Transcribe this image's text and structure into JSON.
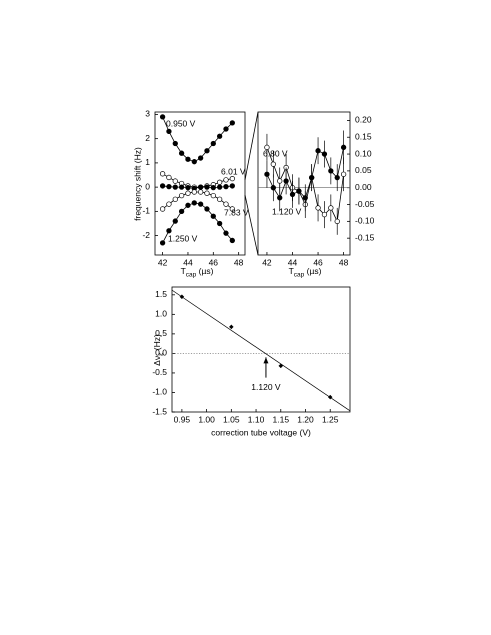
{
  "chart_data": [
    {
      "type": "line",
      "y_label": "frequency shift (Hz)",
      "x_label": {
        "main": "T",
        "sub": "cap",
        "rest": " (µs)"
      },
      "xlim": [
        41.4,
        48.5
      ],
      "xticks": [
        42,
        44,
        46,
        48
      ],
      "ylim": [
        -2.8,
        3.1
      ],
      "yticks": [
        -2,
        -1,
        0,
        1,
        2,
        3
      ],
      "x": [
        42,
        42.5,
        43,
        43.5,
        44,
        44.5,
        45,
        45.5,
        46,
        46.5,
        47,
        47.5
      ],
      "series": [
        {
          "name": "0.950 V",
          "color": "#000000",
          "marker": "filled",
          "values": [
            2.9,
            2.3,
            1.8,
            1.4,
            1.15,
            1.05,
            1.2,
            1.5,
            1.8,
            2.1,
            2.4,
            2.65
          ]
        },
        {
          "name": "6.01 V",
          "color": "#000000",
          "marker": "open",
          "values": [
            0.55,
            0.4,
            0.25,
            0.15,
            0.05,
            0.0,
            0.0,
            0.05,
            0.1,
            0.2,
            0.3,
            0.35
          ]
        },
        {
          "color": "#000000",
          "marker": "filled",
          "values": [
            0.05,
            0.02,
            0.0,
            0.0,
            -0.02,
            -0.05,
            0.0,
            0.0,
            -0.02,
            0.0,
            0.02,
            0.05
          ]
        },
        {
          "name": "7.83 V",
          "color": "#000000",
          "marker": "open",
          "values": [
            -0.9,
            -0.7,
            -0.5,
            -0.35,
            -0.25,
            -0.2,
            -0.2,
            -0.25,
            -0.35,
            -0.5,
            -0.7,
            -0.9
          ]
        },
        {
          "name": "1.250 V",
          "color": "#000000",
          "marker": "filled",
          "values": [
            -2.3,
            -1.8,
            -1.4,
            -1.0,
            -0.75,
            -0.65,
            -0.7,
            -0.9,
            -1.2,
            -1.5,
            -1.9,
            -2.2
          ]
        }
      ]
    },
    {
      "type": "line",
      "x_label": {
        "main": "T",
        "sub": "cap",
        "rest": " (µs)"
      },
      "y_axis_side": "right",
      "hline": 0,
      "xlim": [
        41.3,
        48.5
      ],
      "xticks": [
        42,
        44,
        46,
        48
      ],
      "ylim": [
        -0.2,
        0.225
      ],
      "yticks": [
        {
          "value": -0.15,
          "label": "-0.15"
        },
        {
          "value": -0.1,
          "label": "-0.10"
        },
        {
          "value": -0.05,
          "label": "-0.05"
        },
        {
          "value": 0,
          "label": "0.00"
        },
        {
          "value": 0.05,
          "label": "0.05"
        },
        {
          "value": 0.1,
          "label": "0.10"
        },
        {
          "value": 0.15,
          "label": "0.15"
        },
        {
          "value": 0.2,
          "label": "0.20"
        }
      ],
      "x": [
        42,
        42.5,
        43,
        43.5,
        44,
        44.5,
        45,
        45.5,
        46,
        46.5,
        47,
        47.5,
        48
      ],
      "series": [
        {
          "name": "6.80 V",
          "color": "#000000",
          "marker": "open",
          "values": [
            0.12,
            0.07,
            0.02,
            0.06,
            0.0,
            -0.01,
            -0.05,
            0.03,
            -0.06,
            -0.08,
            -0.06,
            -0.1,
            0.04
          ],
          "errors": [
            0.04,
            0.04,
            0.04,
            0.04,
            0.04,
            0.04,
            0.04,
            0.04,
            0.04,
            0.04,
            0.04,
            0.04,
            0.05
          ]
        },
        {
          "name": "1.120 V",
          "color": "#000000",
          "marker": "filled",
          "values": [
            0.04,
            0.0,
            -0.03,
            0.02,
            -0.02,
            -0.01,
            -0.03,
            0.03,
            0.11,
            0.1,
            0.05,
            0.03,
            0.12
          ],
          "errors": [
            0.04,
            0.04,
            0.04,
            0.04,
            0.04,
            0.04,
            0.04,
            0.04,
            0.04,
            0.04,
            0.04,
            0.04,
            0.05
          ]
        }
      ]
    },
    {
      "type": "scatter",
      "x_label": "correction tube voltage (V)",
      "y_label": {
        "main": "Δν",
        "sub": "z",
        "rest": " (Hz)"
      },
      "annotation": "1.120 V",
      "annotation_x": 1.12,
      "hline": 0,
      "xlim": [
        0.93,
        1.29
      ],
      "xticks": [
        {
          "value": 0.95,
          "label": "0.95"
        },
        {
          "value": 1.0,
          "label": "1.00"
        },
        {
          "value": 1.05,
          "label": "1.05"
        },
        {
          "value": 1.1,
          "label": "1.10"
        },
        {
          "value": 1.15,
          "label": "1.15"
        },
        {
          "value": 1.2,
          "label": "1.20"
        },
        {
          "value": 1.25,
          "label": "1.25"
        }
      ],
      "ylim": [
        -1.5,
        1.7
      ],
      "yticks": [
        {
          "value": -1.5,
          "label": "-1.5"
        },
        {
          "value": -1.0,
          "label": "-1.0"
        },
        {
          "value": -0.5,
          "label": "-0.5"
        },
        {
          "value": 0,
          "label": "0.0"
        },
        {
          "value": 0.5,
          "label": "0.5"
        },
        {
          "value": 1.0,
          "label": "1.0"
        },
        {
          "value": 1.5,
          "label": "1.5"
        }
      ],
      "x": [
        0.95,
        1.05,
        1.15,
        1.25
      ],
      "values": [
        1.45,
        0.68,
        -0.32,
        -1.12
      ],
      "errors": [
        0.05,
        0.05,
        0.05,
        0.05
      ],
      "fit_line": {
        "x": [
          0.93,
          1.29
        ],
        "y": [
          1.62,
          -1.47
        ]
      }
    }
  ]
}
